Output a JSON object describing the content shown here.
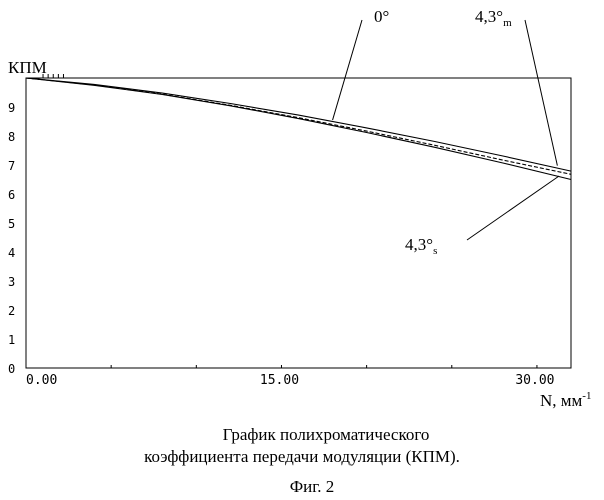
{
  "chart_data": {
    "type": "line",
    "ylabel": "КПМ",
    "xlabel": "N, мм",
    "xlabel_sup": "-1",
    "xlim": [
      0,
      32
    ],
    "ylim": [
      0,
      1
    ],
    "x_ticks": [
      {
        "value": 0,
        "label": "0.00"
      },
      {
        "value": 15,
        "label": "15.00"
      },
      {
        "value": 30,
        "label": "30.00"
      }
    ],
    "y_ticks": [
      {
        "value": 0.0,
        "label": "0"
      },
      {
        "value": 0.1,
        "label": "1"
      },
      {
        "value": 0.2,
        "label": "2"
      },
      {
        "value": 0.3,
        "label": "3"
      },
      {
        "value": 0.4,
        "label": "4"
      },
      {
        "value": 0.5,
        "label": "5"
      },
      {
        "value": 0.6,
        "label": "6"
      },
      {
        "value": 0.7,
        "label": "7"
      },
      {
        "value": 0.8,
        "label": "8"
      },
      {
        "value": 0.9,
        "label": "9"
      }
    ],
    "series": [
      {
        "name": "0°",
        "style": "solid",
        "x": [
          0,
          4,
          8,
          12,
          16,
          20,
          24,
          28,
          32
        ],
        "y": [
          1.0,
          0.978,
          0.948,
          0.912,
          0.872,
          0.828,
          0.781,
          0.731,
          0.679
        ]
      },
      {
        "name": "4,3°m",
        "style": "dashed",
        "x": [
          0,
          4,
          8,
          12,
          16,
          20,
          24,
          28,
          32
        ],
        "y": [
          1.0,
          0.976,
          0.944,
          0.906,
          0.863,
          0.817,
          0.768,
          0.717,
          0.668
        ]
      },
      {
        "name": "4,3°s",
        "style": "solid",
        "x": [
          0,
          4,
          8,
          12,
          16,
          20,
          24,
          28,
          32
        ],
        "y": [
          1.0,
          0.975,
          0.943,
          0.904,
          0.86,
          0.812,
          0.761,
          0.707,
          0.65
        ]
      }
    ],
    "annotations": [
      {
        "id": "ann-0",
        "text": "0°",
        "sub": "",
        "target": {
          "x": 18,
          "y": 0.855
        }
      },
      {
        "id": "ann-m",
        "text": "4,3°",
        "sub": "m",
        "target": {
          "x": 31.2,
          "y": 0.698
        }
      },
      {
        "id": "ann-s",
        "text": "4,3°",
        "sub": "s",
        "target": {
          "x": 31.3,
          "y": 0.662
        }
      }
    ]
  },
  "caption": {
    "line1": "График полихроматического",
    "line2": "коэффициента передачи модуляции (КПМ).",
    "figure": "Фиг. 2"
  }
}
